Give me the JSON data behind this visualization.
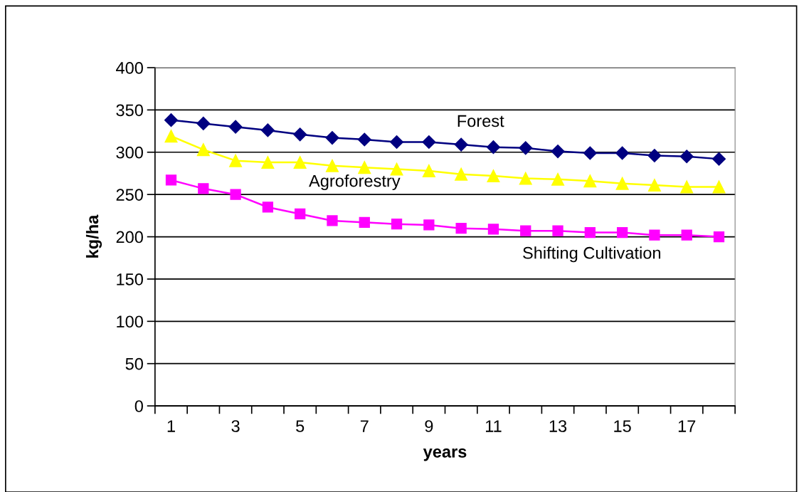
{
  "chart_data": {
    "type": "line",
    "xlabel": "years",
    "ylabel": "kg/ha",
    "categories": [
      "1",
      null,
      "3",
      null,
      "5",
      null,
      "7",
      null,
      "9",
      null,
      "11",
      null,
      "13",
      null,
      "15",
      null,
      "17",
      null
    ],
    "series": [
      {
        "name": "Forest",
        "color": "#000080",
        "marker": "diamond",
        "values": [
          338,
          334,
          330,
          326,
          321,
          317,
          315,
          312,
          312,
          309,
          306,
          305,
          301,
          299,
          299,
          296,
          295,
          292
        ]
      },
      {
        "name": "Agroforestry",
        "color": "#ffff00",
        "marker": "triangle",
        "values": [
          319,
          303,
          290,
          288,
          288,
          284,
          282,
          280,
          278,
          274,
          272,
          269,
          268,
          266,
          263,
          261,
          259,
          259
        ]
      },
      {
        "name": "Shifting Cultivation",
        "color": "#ff00ff",
        "marker": "square",
        "values": [
          267,
          257,
          250,
          235,
          227,
          219,
          217,
          215,
          214,
          210,
          209,
          207,
          207,
          205,
          205,
          202,
          202,
          200
        ]
      }
    ],
    "ylim": [
      0,
      400
    ],
    "yticks": [
      0,
      50,
      100,
      150,
      200,
      250,
      300,
      350,
      400
    ],
    "grid": "y",
    "legend": false
  }
}
